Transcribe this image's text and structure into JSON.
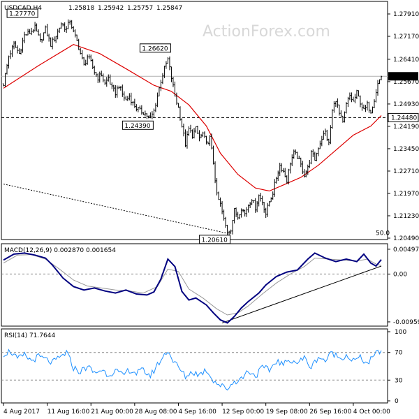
{
  "chart_data": [
    {
      "type": "candlestick",
      "symbol": "USDCAD,H4",
      "ohlc_header": [
        "1.25818",
        "1.25942",
        "1.25757",
        "1.25847"
      ],
      "y_ticks": [
        "1.27910",
        "1.27170",
        "1.26410",
        "1.25670",
        "1.24930",
        "1.24190",
        "1.23450",
        "1.22710",
        "1.21970",
        "1.21230",
        "1.20490"
      ],
      "ylim": [
        1.2049,
        1.2828
      ],
      "current_price_label": "1.25847",
      "current_price": 1.25847,
      "support_label": "1.24480",
      "support_level": 1.2448,
      "fib_label": "50.0",
      "fib_level": 1.2055,
      "peak_labels": [
        {
          "text": "1.27770",
          "price": 1.2777,
          "bar": 18
        },
        {
          "text": "1.26620",
          "price": 1.2662,
          "bar": 94
        },
        {
          "text": "1.24390",
          "price": 1.2439,
          "bar": 84
        },
        {
          "text": "1.20610",
          "price": 1.2061,
          "bar": 128
        }
      ],
      "close_path": [
        [
          0,
          1.256
        ],
        [
          3,
          1.265
        ],
        [
          6,
          1.269
        ],
        [
          9,
          1.266
        ],
        [
          12,
          1.272
        ],
        [
          15,
          1.273
        ],
        [
          18,
          1.2745
        ],
        [
          21,
          1.27
        ],
        [
          24,
          1.274
        ],
        [
          27,
          1.269
        ],
        [
          30,
          1.272
        ],
        [
          33,
          1.276
        ],
        [
          36,
          1.274
        ],
        [
          38,
          1.277
        ],
        [
          40,
          1.273
        ],
        [
          42,
          1.27
        ],
        [
          44,
          1.266
        ],
        [
          46,
          1.262
        ],
        [
          48,
          1.265
        ],
        [
          50,
          1.263
        ],
        [
          52,
          1.26
        ],
        [
          54,
          1.258
        ],
        [
          56,
          1.259
        ],
        [
          58,
          1.256
        ],
        [
          60,
          1.258
        ],
        [
          62,
          1.2545
        ],
        [
          64,
          1.253
        ],
        [
          66,
          1.2555
        ],
        [
          68,
          1.2525
        ],
        [
          70,
          1.2505
        ],
        [
          72,
          1.252
        ],
        [
          74,
          1.2495
        ],
        [
          76,
          1.248
        ],
        [
          78,
          1.247
        ],
        [
          80,
          1.2465
        ],
        [
          82,
          1.2455
        ],
        [
          84,
          1.2445
        ],
        [
          86,
          1.247
        ],
        [
          88,
          1.252
        ],
        [
          90,
          1.257
        ],
        [
          92,
          1.261
        ],
        [
          94,
          1.264
        ],
        [
          96,
          1.258
        ],
        [
          98,
          1.252
        ],
        [
          100,
          1.248
        ],
        [
          102,
          1.242
        ],
        [
          104,
          1.236
        ],
        [
          106,
          1.241
        ],
        [
          108,
          1.239
        ],
        [
          110,
          1.241
        ],
        [
          112,
          1.238
        ],
        [
          114,
          1.2395
        ],
        [
          116,
          1.236
        ],
        [
          118,
          1.238
        ],
        [
          120,
          1.23
        ],
        [
          122,
          1.219
        ],
        [
          124,
          1.216
        ],
        [
          126,
          1.211
        ],
        [
          128,
          1.207
        ],
        [
          130,
          1.208
        ],
        [
          132,
          1.214
        ],
        [
          134,
          1.212
        ],
        [
          136,
          1.215
        ],
        [
          138,
          1.213
        ],
        [
          140,
          1.216
        ],
        [
          142,
          1.218
        ],
        [
          144,
          1.215
        ],
        [
          146,
          1.219
        ],
        [
          148,
          1.217
        ],
        [
          150,
          1.213
        ],
        [
          152,
          1.217
        ],
        [
          154,
          1.22
        ],
        [
          156,
          1.225
        ],
        [
          158,
          1.229
        ],
        [
          160,
          1.227
        ],
        [
          162,
          1.224
        ],
        [
          164,
          1.23
        ],
        [
          166,
          1.233
        ],
        [
          168,
          1.232
        ],
        [
          170,
          1.229
        ],
        [
          172,
          1.226
        ],
        [
          174,
          1.228
        ],
        [
          176,
          1.233
        ],
        [
          178,
          1.231
        ],
        [
          180,
          1.235
        ],
        [
          182,
          1.238
        ],
        [
          184,
          1.24
        ],
        [
          186,
          1.236
        ],
        [
          188,
          1.247
        ],
        [
          190,
          1.251
        ],
        [
          192,
          1.246
        ],
        [
          194,
          1.243
        ],
        [
          196,
          1.249
        ],
        [
          198,
          1.252
        ],
        [
          200,
          1.25
        ],
        [
          202,
          1.253
        ],
        [
          204,
          1.25
        ],
        [
          206,
          1.247
        ],
        [
          208,
          1.249
        ],
        [
          210,
          1.247
        ],
        [
          212,
          1.251
        ],
        [
          214,
          1.256
        ],
        [
          216,
          1.2585
        ]
      ],
      "ma_path": [
        [
          0,
          1.2545
        ],
        [
          20,
          1.262
        ],
        [
          40,
          1.269
        ],
        [
          55,
          1.266
        ],
        [
          70,
          1.261
        ],
        [
          86,
          1.2555
        ],
        [
          96,
          1.2535
        ],
        [
          106,
          1.249
        ],
        [
          116,
          1.242
        ],
        [
          124,
          1.233
        ],
        [
          134,
          1.226
        ],
        [
          144,
          1.2215
        ],
        [
          152,
          1.2205
        ],
        [
          160,
          1.2225
        ],
        [
          170,
          1.225
        ],
        [
          180,
          1.229
        ],
        [
          190,
          1.234
        ],
        [
          200,
          1.239
        ],
        [
          210,
          1.242
        ],
        [
          216,
          1.2455
        ]
      ],
      "trend_line": [
        [
          0,
          1.2228
        ],
        [
          128,
          1.2065
        ]
      ]
    },
    {
      "type": "line",
      "title": "MACD(12,26,9) 0.002870 0.001654",
      "y_ticks": [
        "0.004974",
        "0.00",
        "-0.009591"
      ],
      "ylim": [
        -0.0103,
        0.0058
      ],
      "zero_level": 0.0,
      "series": [
        {
          "values": [
            [
              0,
              0.0028
            ],
            [
              6,
              0.004
            ],
            [
              12,
              0.0042
            ],
            [
              18,
              0.0038
            ],
            [
              24,
              0.0032
            ],
            [
              28,
              0.0018
            ],
            [
              34,
              -0.0008
            ],
            [
              40,
              -0.0025
            ],
            [
              46,
              -0.0032
            ],
            [
              52,
              -0.0028
            ],
            [
              58,
              -0.0034
            ],
            [
              64,
              -0.0038
            ],
            [
              70,
              -0.0032
            ],
            [
              76,
              -0.004
            ],
            [
              82,
              -0.0042
            ],
            [
              86,
              -0.0036
            ],
            [
              90,
              -0.001
            ],
            [
              94,
              0.003
            ],
            [
              98,
              0.0015
            ],
            [
              102,
              -0.0035
            ],
            [
              106,
              -0.0052
            ],
            [
              110,
              -0.0048
            ],
            [
              116,
              -0.0062
            ],
            [
              120,
              -0.0078
            ],
            [
              124,
              -0.0092
            ],
            [
              128,
              -0.0098
            ],
            [
              132,
              -0.0085
            ],
            [
              136,
              -0.0068
            ],
            [
              140,
              -0.0055
            ],
            [
              146,
              -0.0038
            ],
            [
              150,
              -0.0022
            ],
            [
              156,
              -0.0005
            ],
            [
              162,
              0.0004
            ],
            [
              168,
              0.0008
            ],
            [
              174,
              0.003
            ],
            [
              178,
              0.0042
            ],
            [
              184,
              0.0032
            ],
            [
              190,
              0.0025
            ],
            [
              196,
              0.003
            ],
            [
              202,
              0.0025
            ],
            [
              206,
              0.004
            ],
            [
              210,
              0.0022
            ],
            [
              213,
              0.0016
            ],
            [
              216,
              0.0029
            ]
          ]
        },
        {
          "values": [
            [
              0,
              0.0022
            ],
            [
              8,
              0.0038
            ],
            [
              16,
              0.0039
            ],
            [
              24,
              0.003
            ],
            [
              32,
              0.001
            ],
            [
              40,
              -0.0012
            ],
            [
              48,
              -0.0024
            ],
            [
              56,
              -0.0028
            ],
            [
              64,
              -0.0032
            ],
            [
              72,
              -0.0034
            ],
            [
              80,
              -0.0038
            ],
            [
              88,
              -0.0025
            ],
            [
              94,
              0.001
            ],
            [
              100,
              0.0005
            ],
            [
              106,
              -0.003
            ],
            [
              114,
              -0.0048
            ],
            [
              122,
              -0.007
            ],
            [
              128,
              -0.0082
            ],
            [
              134,
              -0.0078
            ],
            [
              140,
              -0.0064
            ],
            [
              148,
              -0.004
            ],
            [
              156,
              -0.0018
            ],
            [
              164,
              0.0
            ],
            [
              172,
              0.0015
            ],
            [
              178,
              0.0032
            ],
            [
              186,
              0.003
            ],
            [
              194,
              0.0028
            ],
            [
              202,
              0.0026
            ],
            [
              208,
              0.003
            ],
            [
              213,
              0.002
            ],
            [
              216,
              0.0017
            ]
          ]
        }
      ],
      "trend_line": [
        [
          125,
          -0.0098
        ],
        [
          216,
          0.0016
        ]
      ]
    },
    {
      "type": "line",
      "title": "RSI(14) 71.7644",
      "y_ticks": [
        "100",
        "70",
        "30",
        "0"
      ],
      "ylim": [
        0,
        100
      ],
      "levels": [
        70,
        30
      ],
      "series": [
        {
          "values": [
            [
              0,
              68
            ],
            [
              4,
              72
            ],
            [
              8,
              60
            ],
            [
              12,
              66
            ],
            [
              16,
              58
            ],
            [
              20,
              64
            ],
            [
              24,
              60
            ],
            [
              28,
              55
            ],
            [
              32,
              62
            ],
            [
              36,
              70
            ],
            [
              40,
              48
            ],
            [
              44,
              42
            ],
            [
              48,
              50
            ],
            [
              52,
              40
            ],
            [
              56,
              45
            ],
            [
              60,
              38
            ],
            [
              64,
              44
            ],
            [
              68,
              36
            ],
            [
              72,
              45
            ],
            [
              76,
              40
            ],
            [
              80,
              44
            ],
            [
              84,
              36
            ],
            [
              88,
              52
            ],
            [
              92,
              66
            ],
            [
              94,
              74
            ],
            [
              96,
              62
            ],
            [
              100,
              48
            ],
            [
              104,
              35
            ],
            [
              108,
              42
            ],
            [
              112,
              38
            ],
            [
              116,
              45
            ],
            [
              120,
              30
            ],
            [
              124,
              22
            ],
            [
              128,
              18
            ],
            [
              132,
              28
            ],
            [
              136,
              32
            ],
            [
              140,
              44
            ],
            [
              144,
              36
            ],
            [
              148,
              48
            ],
            [
              152,
              44
            ],
            [
              156,
              58
            ],
            [
              160,
              52
            ],
            [
              164,
              60
            ],
            [
              168,
              55
            ],
            [
              172,
              62
            ],
            [
              176,
              48
            ],
            [
              180,
              64
            ],
            [
              184,
              58
            ],
            [
              188,
              70
            ],
            [
              192,
              62
            ],
            [
              196,
              66
            ],
            [
              200,
              58
            ],
            [
              204,
              62
            ],
            [
              208,
              54
            ],
            [
              212,
              64
            ],
            [
              214,
              72
            ],
            [
              216,
              72
            ]
          ]
        }
      ]
    }
  ],
  "x_labels": [
    "4 Aug 2017",
    "11 Aug 16:00",
    "21 Aug 00:00",
    "28 Aug 08:00",
    "4 Sep 16:00",
    "12 Sep 00:00",
    "19 Sep 08:00",
    "26 Sep 16:00",
    "4 Oct 00:00"
  ],
  "x_label_bars": [
    0,
    25,
    50,
    75,
    100,
    125,
    150,
    175,
    200
  ],
  "x_total_bars": 216,
  "watermark": "ActionForex.com",
  "colors": {
    "candle": "#000000",
    "ma": "#dd0000",
    "macd": "#000080",
    "signal": "#999999",
    "rsi": "#1e90ff",
    "trend": "#000000"
  }
}
